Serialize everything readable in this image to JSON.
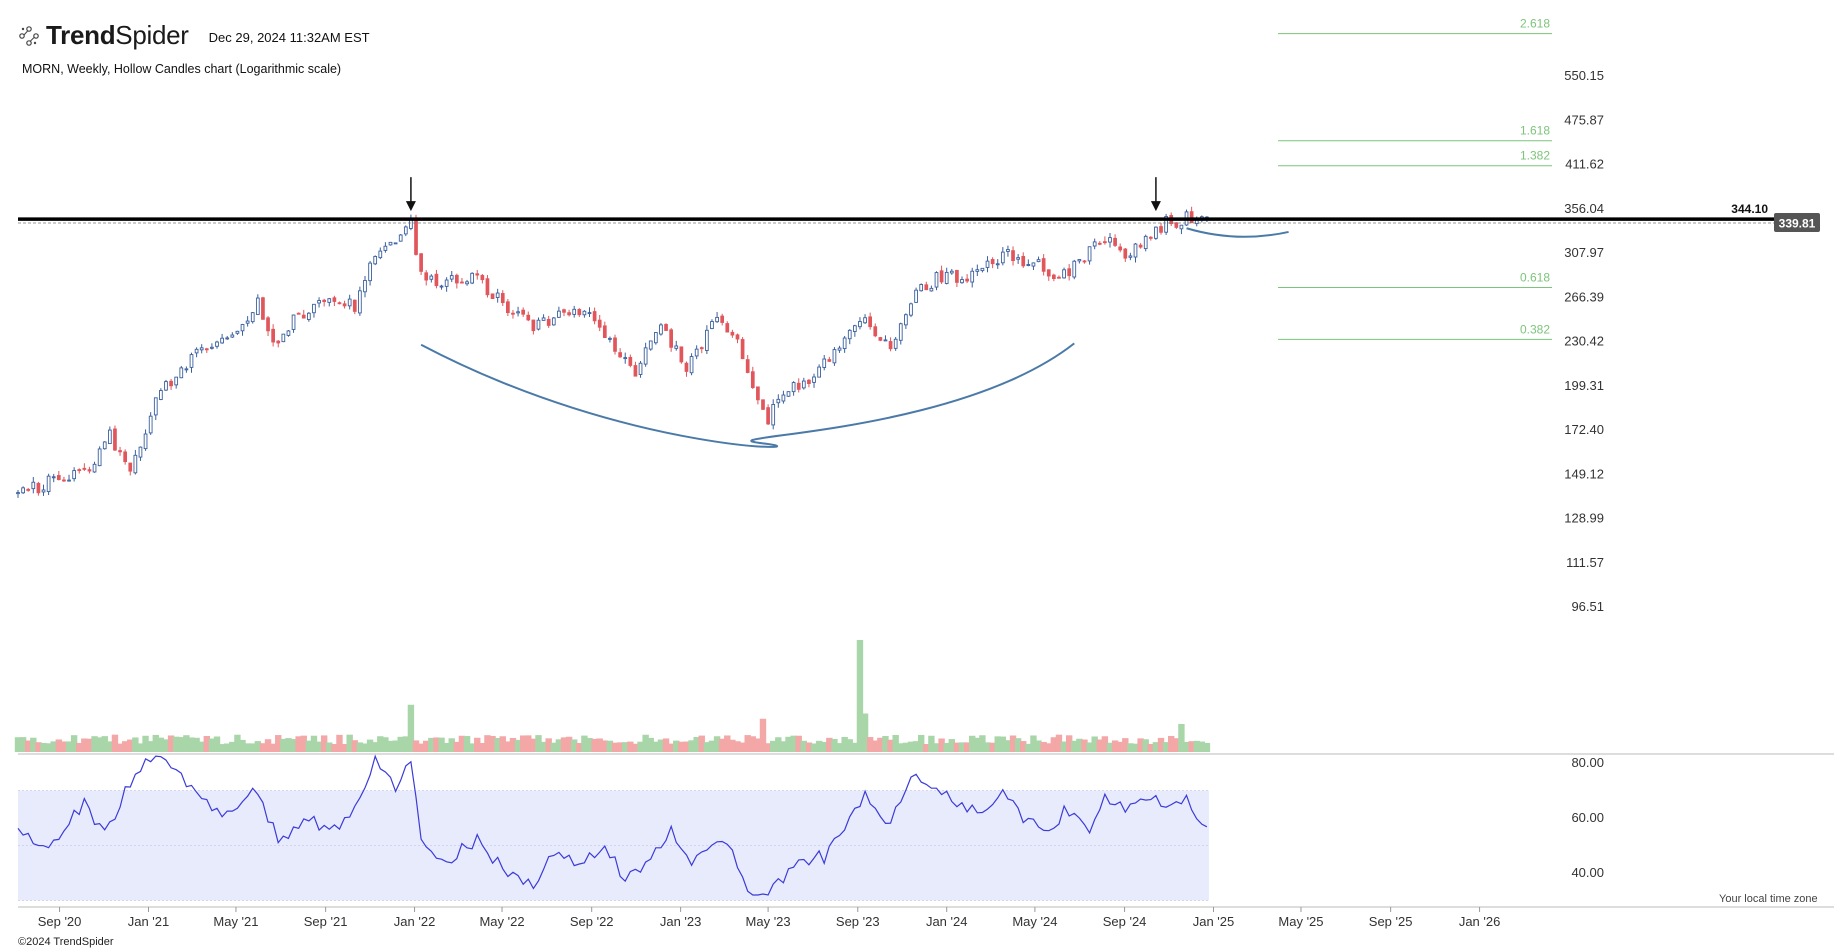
{
  "header": {
    "brand_prefix": "Trend",
    "brand_suffix": "Spider",
    "timestamp": "Dec 29, 2024 11:32AM EST",
    "subtitle": "MORN, Weekly, Hollow Candles chart (Logarithmic scale)"
  },
  "footer": {
    "copyright": "©2024 TrendSpider",
    "timezone_note": "Your local time zone"
  },
  "colors": {
    "up": "#3a5f9e",
    "down": "#e0565b",
    "volume_up": "#a9d6a9",
    "volume_down": "#f3a7a7",
    "fib": "#7cc47a",
    "rsi_line": "#3b3bd8",
    "rsi_band": "#e8ebfb",
    "arc": "#4a7aa8",
    "resistance": "#000000",
    "price_tag": "#555555"
  },
  "chart_data": {
    "type": "candlestick",
    "symbol": "MORN",
    "interval": "Weekly",
    "scale": "log",
    "price_axis_ticks": [
      "550.15",
      "475.87",
      "411.62",
      "356.04",
      "307.97",
      "266.39",
      "230.42",
      "199.31",
      "172.40",
      "149.12",
      "128.99",
      "111.57",
      "96.51"
    ],
    "rsi_axis_ticks": [
      "80.00",
      "60.00",
      "40.00"
    ],
    "x_ticks": [
      "Sep '20",
      "Jan '21",
      "May '21",
      "Sep '21",
      "Jan '22",
      "May '22",
      "Sep '22",
      "Jan '23",
      "May '23",
      "Sep '23",
      "Jan '24",
      "May '24",
      "Sep '24",
      "Jan '25",
      "May '25",
      "Sep '25",
      "Jan '26"
    ],
    "x_range": [
      "2020-07-06",
      "2026-02-09"
    ],
    "fibonacci_levels": [
      {
        "label": "2.618",
        "price": 632
      },
      {
        "label": "1.618",
        "price": 445
      },
      {
        "label": "1.382",
        "price": 410
      },
      {
        "label": "0.618",
        "price": 275
      },
      {
        "label": "0.382",
        "price": 232
      }
    ],
    "resistance": {
      "label": "344.10",
      "price": 344.1
    },
    "last_price": {
      "label": "339.81",
      "price": 339.81
    },
    "arrows_at": [
      "2021-12-27",
      "2024-10-14"
    ],
    "rsi_band": [
      30,
      70
    ],
    "anchors": [
      [
        "2020-07-06",
        140
      ],
      [
        "2020-09-28",
        150
      ],
      [
        "2020-10-12",
        152
      ],
      [
        "2020-11-09",
        170
      ],
      [
        "2020-12-07",
        150
      ],
      [
        "2021-01-18",
        195
      ],
      [
        "2021-03-01",
        218
      ],
      [
        "2021-04-05",
        228
      ],
      [
        "2021-05-03",
        238
      ],
      [
        "2021-05-31",
        262
      ],
      [
        "2021-06-21",
        230
      ],
      [
        "2021-07-26",
        252
      ],
      [
        "2021-09-06",
        265
      ],
      [
        "2021-10-11",
        260
      ],
      [
        "2021-11-08",
        306
      ],
      [
        "2021-12-20",
        335
      ],
      [
        "2021-12-27",
        337
      ],
      [
        "2022-01-10",
        290
      ],
      [
        "2022-02-07",
        280
      ],
      [
        "2022-03-21",
        285
      ],
      [
        "2022-05-02",
        262
      ],
      [
        "2022-06-13",
        240
      ],
      [
        "2022-07-25",
        252
      ],
      [
        "2022-08-22",
        255
      ],
      [
        "2022-10-10",
        218
      ],
      [
        "2022-10-31",
        208
      ],
      [
        "2022-12-05",
        245
      ],
      [
        "2023-01-09",
        210
      ],
      [
        "2023-02-20",
        248
      ],
      [
        "2023-03-20",
        230
      ],
      [
        "2023-04-17",
        187
      ],
      [
        "2023-05-01",
        178
      ],
      [
        "2023-05-15",
        195
      ],
      [
        "2023-06-26",
        200
      ],
      [
        "2023-07-31",
        225
      ],
      [
        "2023-09-04",
        250
      ],
      [
        "2023-10-16",
        224
      ],
      [
        "2023-11-13",
        265
      ],
      [
        "2023-12-18",
        283
      ],
      [
        "2024-02-05",
        288
      ],
      [
        "2024-03-25",
        308
      ],
      [
        "2024-05-06",
        296
      ],
      [
        "2024-05-27",
        280
      ],
      [
        "2024-07-01",
        300
      ],
      [
        "2024-08-05",
        325
      ],
      [
        "2024-09-09",
        306
      ],
      [
        "2024-10-07",
        325
      ],
      [
        "2024-10-28",
        340
      ],
      [
        "2024-11-25",
        345
      ],
      [
        "2024-12-23",
        339.81
      ]
    ],
    "rsi_anchors": [
      [
        "2020-07-06",
        56
      ],
      [
        "2020-08-17",
        50
      ],
      [
        "2020-10-05",
        66
      ],
      [
        "2020-11-02",
        54
      ],
      [
        "2020-12-07",
        73
      ],
      [
        "2021-01-04",
        82
      ],
      [
        "2021-02-08",
        78
      ],
      [
        "2021-03-15",
        66
      ],
      [
        "2021-04-19",
        60
      ],
      [
        "2021-05-31",
        70
      ],
      [
        "2021-06-28",
        52
      ],
      [
        "2021-08-09",
        60
      ],
      [
        "2021-09-13",
        55
      ],
      [
        "2021-10-18",
        67
      ],
      [
        "2021-11-08",
        80
      ],
      [
        "2021-12-06",
        72
      ],
      [
        "2021-12-27",
        82
      ],
      [
        "2022-01-10",
        50
      ],
      [
        "2022-02-14",
        45
      ],
      [
        "2022-03-28",
        52
      ],
      [
        "2022-05-09",
        40
      ],
      [
        "2022-06-13",
        36
      ],
      [
        "2022-07-11",
        47
      ],
      [
        "2022-08-15",
        42
      ],
      [
        "2022-09-19",
        50
      ],
      [
        "2022-10-17",
        38
      ],
      [
        "2022-11-21",
        46
      ],
      [
        "2022-12-19",
        55
      ],
      [
        "2023-01-16",
        42
      ],
      [
        "2023-02-20",
        52
      ],
      [
        "2023-03-20",
        44
      ],
      [
        "2023-04-10",
        30
      ],
      [
        "2023-05-01",
        32
      ],
      [
        "2023-06-12",
        44
      ],
      [
        "2023-07-17",
        46
      ],
      [
        "2023-08-21",
        60
      ],
      [
        "2023-09-11",
        68
      ],
      [
        "2023-10-09",
        56
      ],
      [
        "2023-11-13",
        74
      ],
      [
        "2023-12-18",
        72
      ],
      [
        "2024-01-22",
        64
      ],
      [
        "2024-02-19",
        62
      ],
      [
        "2024-03-18",
        70
      ],
      [
        "2024-04-15",
        60
      ],
      [
        "2024-05-13",
        55
      ],
      [
        "2024-06-10",
        62
      ],
      [
        "2024-07-15",
        57
      ],
      [
        "2024-08-05",
        68
      ],
      [
        "2024-09-02",
        62
      ],
      [
        "2024-10-07",
        68
      ],
      [
        "2024-10-28",
        64
      ],
      [
        "2024-11-25",
        66
      ],
      [
        "2024-12-23",
        58
      ]
    ],
    "volume_spikes": [
      [
        "2021-12-27",
        2.7
      ],
      [
        "2023-04-24",
        1.9
      ],
      [
        "2023-09-04",
        6.4
      ],
      [
        "2023-09-11",
        2.2
      ],
      [
        "2024-11-18",
        1.6
      ]
    ]
  }
}
